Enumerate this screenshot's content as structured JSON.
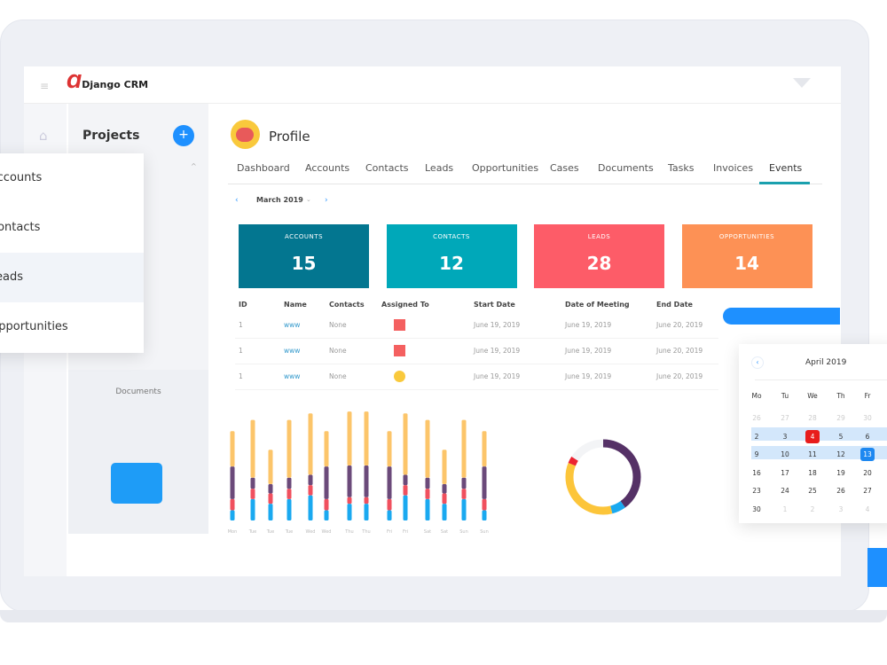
{
  "header": {
    "logo_text": "Django CRM"
  },
  "sidebar": {
    "title": "Projects",
    "documents_label": "Documents"
  },
  "menu": {
    "items": [
      {
        "label": "Accounts"
      },
      {
        "label": "Contacts"
      },
      {
        "label": "Leads",
        "active": true
      },
      {
        "label": "Opportunities"
      }
    ]
  },
  "profile": {
    "title": "Profile"
  },
  "tabs": [
    {
      "label": "Dashboard"
    },
    {
      "label": "Accounts"
    },
    {
      "label": "Contacts"
    },
    {
      "label": "Leads"
    },
    {
      "label": "Opportunities"
    },
    {
      "label": "Cases"
    },
    {
      "label": "Documents"
    },
    {
      "label": "Tasks"
    },
    {
      "label": "Invoices"
    },
    {
      "label": "Events",
      "active": true
    }
  ],
  "month_picker": {
    "value": "March 2019"
  },
  "stats": [
    {
      "label": "ACCOUNTS",
      "value": "15",
      "color": "#037690"
    },
    {
      "label": "CONTACTS",
      "value": "12",
      "color": "#00a8b9"
    },
    {
      "label": "LEADS",
      "value": "28",
      "color": "#fd5c68"
    },
    {
      "label": "OPPORTUNITIES",
      "value": "14",
      "color": "#fd9155"
    }
  ],
  "table": {
    "headers": [
      "ID",
      "Name",
      "Contacts",
      "Assigned To",
      "Start Date",
      "Date of Meeting",
      "End Date"
    ],
    "rows": [
      [
        "1",
        "www",
        "None",
        "red-avatar",
        "June 19, 2019",
        "June 19, 2019",
        "June 20, 2019"
      ],
      [
        "1",
        "www",
        "None",
        "red-avatar",
        "June 19, 2019",
        "June 19, 2019",
        "June 20, 2019"
      ],
      [
        "1",
        "www",
        "None",
        "user-avatar",
        "June 19, 2019",
        "June 19, 2019",
        "June 20, 2019"
      ]
    ]
  },
  "chart_data": [
    {
      "type": "bar",
      "stacked": true,
      "categories": [
        "Mon",
        "Tue",
        "Tue",
        "Tue",
        "Wed",
        "Wed",
        "Thu",
        "Thu",
        "Fri",
        "Fri",
        "Sat",
        "Sat",
        "Sun",
        "Sun"
      ],
      "colors": [
        "#1aa9f0",
        "#f0505e",
        "#6b4a7a",
        "#fcc56a"
      ],
      "series": [
        {
          "values": [
            11,
            23,
            18,
            23,
            27,
            11,
            18,
            18,
            11,
            27,
            23,
            18,
            23,
            11
          ]
        },
        {
          "values": [
            12,
            11,
            11,
            11,
            11,
            12,
            7,
            7,
            12,
            11,
            11,
            11,
            11,
            12
          ]
        },
        {
          "values": [
            35,
            12,
            10,
            12,
            11,
            35,
            34,
            34,
            35,
            11,
            12,
            10,
            12,
            35
          ]
        },
        {
          "values": [
            38,
            62,
            37,
            62,
            66,
            38,
            58,
            58,
            38,
            66,
            62,
            37,
            62,
            38
          ]
        }
      ]
    },
    {
      "type": "pie",
      "donut": true,
      "values": [
        40,
        6,
        35,
        3,
        16
      ],
      "colors": [
        "#553166",
        "#1aa9f0",
        "#fcc53a",
        "#ec2331",
        "#f3f4f6"
      ]
    }
  ],
  "calendar": {
    "title": "April 2019",
    "weekdays": [
      "Mo",
      "Tu",
      "We",
      "Th",
      "Fr"
    ],
    "weeks": [
      [
        "26",
        "27",
        "28",
        "29",
        "30"
      ],
      [
        "2",
        "3",
        "4",
        "5",
        "6"
      ],
      [
        "9",
        "10",
        "11",
        "12",
        "13"
      ],
      [
        "16",
        "17",
        "18",
        "19",
        "20"
      ],
      [
        "23",
        "24",
        "25",
        "26",
        "27"
      ],
      [
        "30",
        "1",
        "2",
        "3",
        "4"
      ]
    ],
    "marked_day": "4",
    "selected_day": "13"
  }
}
